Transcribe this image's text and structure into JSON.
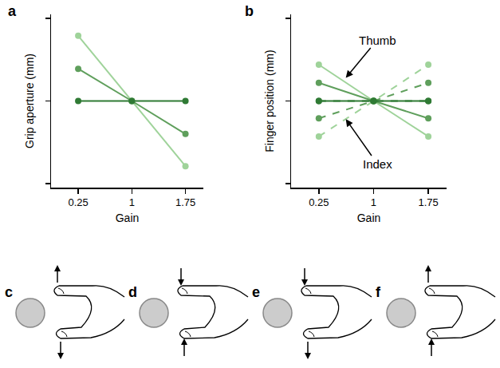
{
  "chart_data": [
    {
      "type": "line",
      "panel": "a",
      "xlabel": "Gain",
      "ylabel": "Grip aperture (mm)",
      "x": [
        0.25,
        1,
        1.75
      ],
      "series": [
        {
          "color": "#9fd39a",
          "line_style": "solid",
          "values": [
            0.79,
            0,
            -0.79
          ]
        },
        {
          "color": "#5f9f5c",
          "line_style": "solid",
          "values": [
            0.39,
            0,
            -0.4
          ]
        },
        {
          "color": "#2f7a34",
          "line_style": "solid",
          "values": [
            0,
            0,
            0
          ]
        }
      ],
      "xlim": [
        -0.13,
        2.0
      ],
      "ylim": [
        -1.05,
        1.05
      ],
      "xticks": [
        0.25,
        1,
        1.75
      ],
      "yticks": [
        -1,
        0,
        1
      ],
      "tick_labels": "x",
      "marker": "circle",
      "grid": false
    },
    {
      "type": "line",
      "panel": "b",
      "xlabel": "Gain",
      "ylabel": "Finger position (mm)",
      "x": [
        0.25,
        1,
        1.75
      ],
      "series": [
        {
          "color": "#9fd39a",
          "line_style": "solid",
          "values": [
            0.44,
            0,
            -0.43
          ]
        },
        {
          "color": "#9fd39a",
          "line_style": "dashed",
          "values": [
            -0.43,
            0,
            0.44
          ]
        },
        {
          "color": "#5f9f5c",
          "line_style": "solid",
          "values": [
            0.22,
            0,
            -0.21
          ]
        },
        {
          "color": "#5f9f5c",
          "line_style": "dashed",
          "values": [
            -0.21,
            0,
            0.22
          ]
        },
        {
          "color": "#2f7a34",
          "line_style": "solid",
          "values": [
            0,
            0,
            0
          ]
        },
        {
          "color": "#2f7a34",
          "line_style": "dashed",
          "values": [
            0,
            0,
            0
          ]
        }
      ],
      "annotations": [
        {
          "text": "Thumb"
        },
        {
          "text": "Index"
        }
      ],
      "xlim": [
        -0.13,
        2.0
      ],
      "ylim": [
        -1.05,
        1.05
      ],
      "xticks": [
        0.25,
        1,
        1.75
      ],
      "yticks": [
        -1,
        0,
        1
      ],
      "tick_labels": "x",
      "marker": "circle",
      "grid": false
    }
  ],
  "diagrams": [
    {
      "label": "c"
    },
    {
      "label": "d"
    },
    {
      "label": "e"
    },
    {
      "label": "f"
    }
  ]
}
